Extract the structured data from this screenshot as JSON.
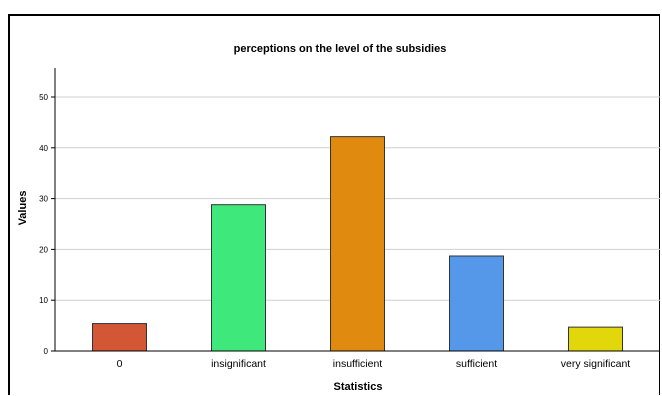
{
  "chart_data": {
    "type": "bar",
    "title": "perceptions on the level of the subsidies",
    "xlabel": "Statistics",
    "ylabel": "Values",
    "categories": [
      "0",
      "insignificant",
      "insufficient",
      "sufficient",
      "very significant"
    ],
    "values": [
      5.4,
      28.8,
      42.2,
      18.7,
      4.7
    ],
    "colors": [
      "#d45735",
      "#3fe87b",
      "#e08a10",
      "#5597e8",
      "#e2d70a"
    ],
    "ylim": [
      0,
      55
    ],
    "yticks": [
      0,
      10,
      20,
      30,
      40,
      50
    ],
    "grid": true
  }
}
